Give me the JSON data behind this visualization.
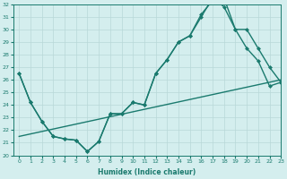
{
  "line1_x": [
    0,
    1,
    2,
    3,
    4,
    5,
    6,
    7,
    8,
    9,
    10,
    11,
    12,
    13,
    14,
    15,
    16,
    17,
    18,
    19,
    20,
    21,
    22,
    23
  ],
  "line1_y": [
    26.5,
    24.2,
    22.7,
    21.5,
    21.3,
    21.2,
    20.3,
    21.1,
    23.3,
    23.3,
    24.2,
    24.0,
    26.5,
    27.6,
    29.0,
    29.5,
    31.2,
    32.3,
    32.5,
    30.0,
    30.0,
    28.5,
    27.0,
    25.8
  ],
  "line2_x": [
    0,
    1,
    2,
    3,
    4,
    5,
    6,
    7,
    8,
    9,
    10,
    11,
    12,
    13,
    14,
    15,
    16,
    17,
    18,
    19,
    20,
    21,
    22,
    23
  ],
  "line2_y": [
    26.5,
    24.2,
    22.7,
    21.5,
    21.3,
    21.2,
    20.3,
    21.1,
    23.3,
    23.3,
    24.2,
    24.0,
    26.5,
    27.6,
    29.0,
    29.5,
    31.0,
    32.5,
    31.8,
    30.0,
    28.5,
    27.5,
    25.5,
    25.8
  ],
  "line3_x": [
    0,
    23
  ],
  "line3_y": [
    21.5,
    26.0
  ],
  "color": "#1a7a6e",
  "bg_color": "#d4eeee",
  "grid_color": "#b8d8d8",
  "xlabel": "Humidex (Indice chaleur)",
  "ylim": [
    20,
    32
  ],
  "xlim": [
    -0.5,
    23
  ],
  "yticks": [
    20,
    21,
    22,
    23,
    24,
    25,
    26,
    27,
    28,
    29,
    30,
    31,
    32
  ],
  "xticks": [
    0,
    1,
    2,
    3,
    4,
    5,
    6,
    7,
    8,
    9,
    10,
    11,
    12,
    13,
    14,
    15,
    16,
    17,
    18,
    19,
    20,
    21,
    22,
    23
  ],
  "markersize": 2.5,
  "linewidth": 1.0
}
